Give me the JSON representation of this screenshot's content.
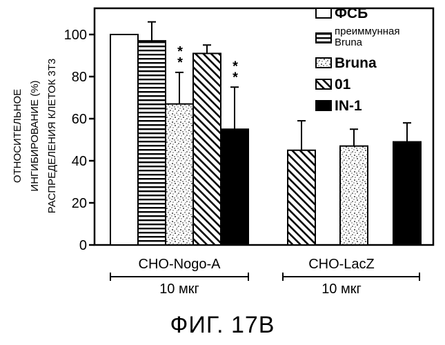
{
  "figure": {
    "caption": "ФИГ. 17В"
  },
  "chart_data": {
    "type": "bar",
    "ylabel_lines": [
      "ОТНОСИТЕЛЬНОЕ",
      "ИНГИБИРОВАНИЕ (%)",
      "РАСПРЕДЕЛЕНИЯ КЛЕТОК 3T3"
    ],
    "ylim": [
      0,
      100
    ],
    "yticks": [
      0,
      20,
      40,
      60,
      80,
      100
    ],
    "grid": false,
    "legend_position": "top-right",
    "groups": [
      {
        "name": "CHO-Nogo-A",
        "dose": "10 мкг"
      },
      {
        "name": "CHO-LacZ",
        "dose": "10 мкг"
      }
    ],
    "series": [
      {
        "name": "ФСБ",
        "legend_label": "ФСБ",
        "values": [
          100,
          null
        ],
        "errors": [
          0,
          null
        ],
        "marks": [
          "",
          ""
        ]
      },
      {
        "name": "преиммунная Bruna",
        "legend_label": [
          "преиммунная",
          "Bruna"
        ],
        "values": [
          97,
          null
        ],
        "errors": [
          9,
          null
        ],
        "marks": [
          "",
          ""
        ]
      },
      {
        "name": "Bruna",
        "legend_label": "Bruna",
        "values": [
          67,
          47
        ],
        "errors": [
          15,
          8
        ],
        "marks": [
          "**",
          ""
        ]
      },
      {
        "name": "01",
        "legend_label": "01",
        "values": [
          91,
          45
        ],
        "errors": [
          4,
          14
        ],
        "marks": [
          "",
          ""
        ]
      },
      {
        "name": "IN-1",
        "legend_label": "IN-1",
        "values": [
          55,
          49
        ],
        "errors": [
          20,
          9
        ],
        "marks": [
          "**",
          ""
        ]
      }
    ]
  }
}
